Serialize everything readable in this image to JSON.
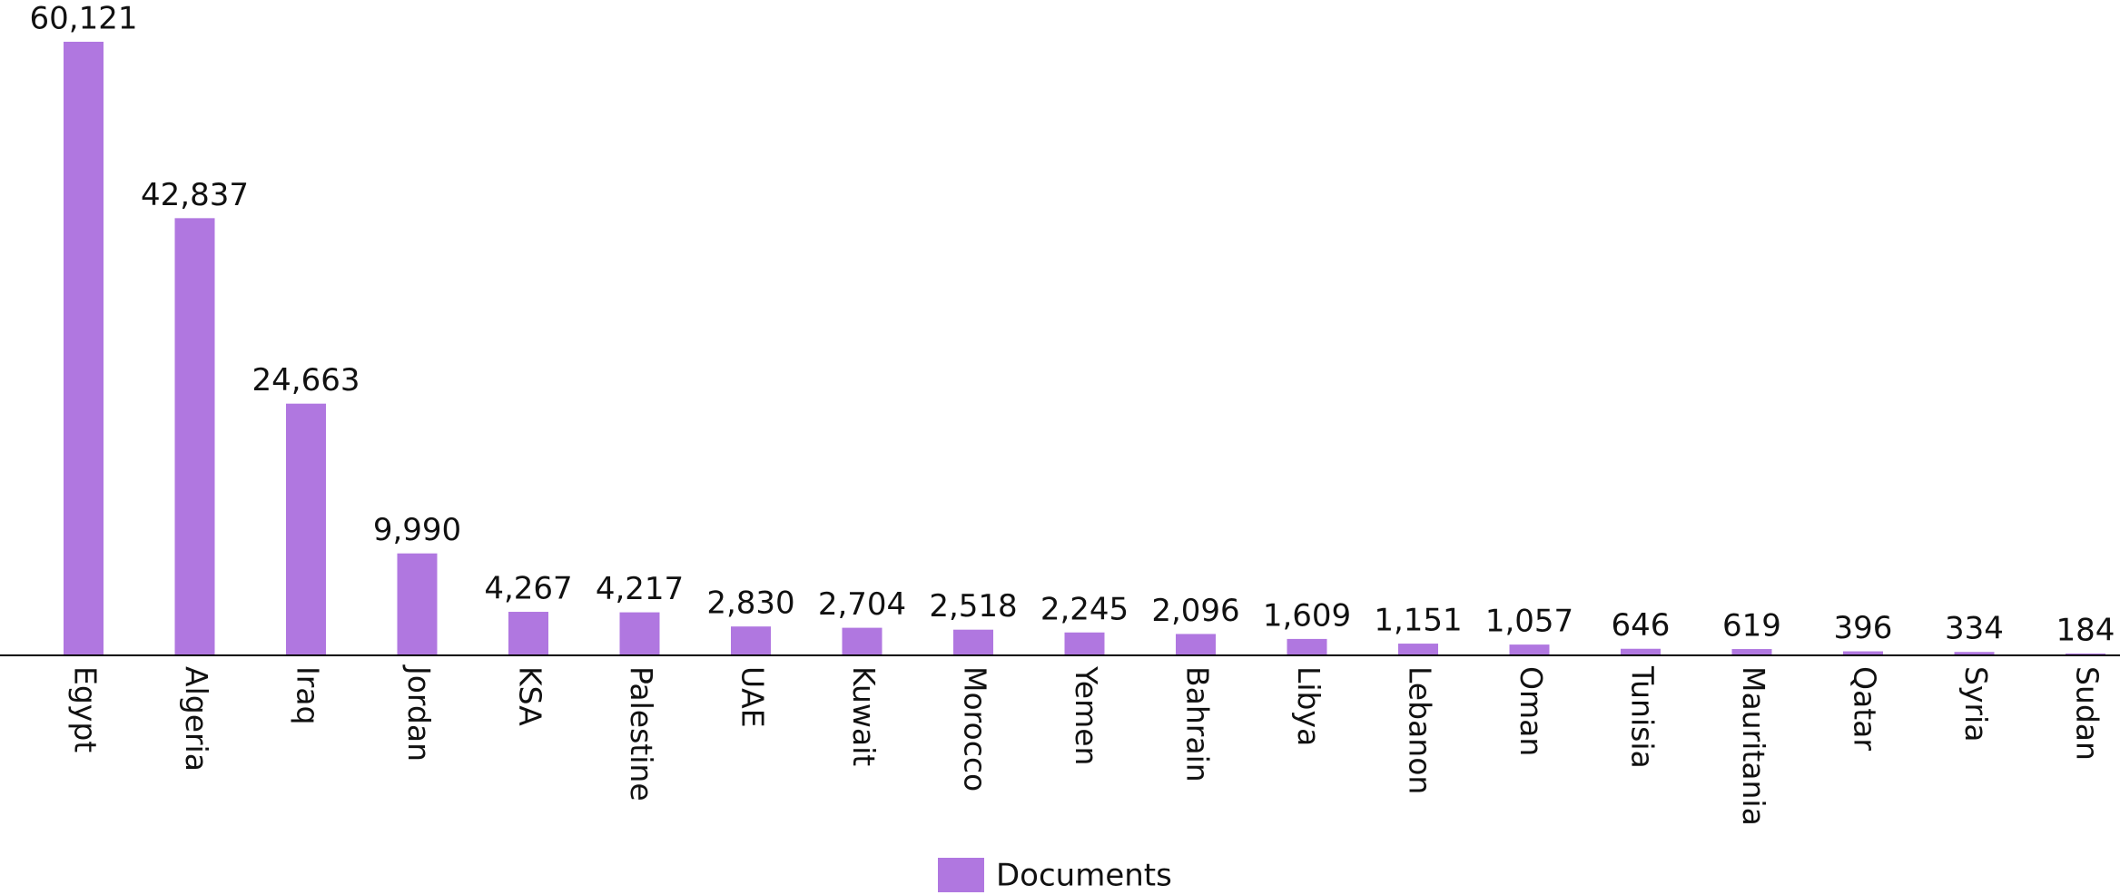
{
  "chart_data": {
    "type": "bar",
    "categories": [
      "Egypt",
      "Algeria",
      "Iraq",
      "Jordan",
      "KSA",
      "Palestine",
      "UAE",
      "Kuwait",
      "Morocco",
      "Yemen",
      "Bahrain",
      "Libya",
      "Lebanon",
      "Oman",
      "Tunisia",
      "Mauritania",
      "Qatar",
      "Syria",
      "Sudan"
    ],
    "series": [
      {
        "name": "Documents",
        "color": "#b077e0",
        "values": [
          60121,
          42837,
          24663,
          9990,
          4267,
          4217,
          2830,
          2704,
          2518,
          2245,
          2096,
          1609,
          1151,
          1057,
          646,
          619,
          396,
          334,
          184
        ],
        "value_labels": [
          "60,121",
          "42,837",
          "24,663",
          "9,990",
          "4,267",
          "4,217",
          "2,830",
          "2,704",
          "2,518",
          "2,245",
          "2,096",
          "1,609",
          "1,151",
          "1,057",
          "646",
          "619",
          "396",
          "334",
          "184"
        ]
      }
    ],
    "ylim": [
      0,
      60121
    ],
    "legend": "bottom"
  }
}
